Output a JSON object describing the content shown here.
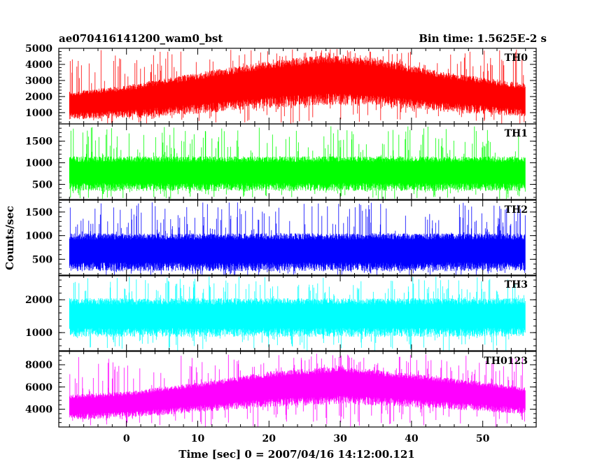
{
  "header": {
    "title": "ae070416141200_wam0_bst",
    "bin_time": "Bin time: 1.5625E-2 s"
  },
  "axes": {
    "xlabel": "Time [sec] 0 = 2007/04/16 14:12:00.121",
    "ylabel": "Counts/sec"
  },
  "chart_data": {
    "type": "line",
    "xlim": [
      -9.5,
      57.5
    ],
    "x_ticks": [
      0,
      10,
      20,
      30,
      40,
      50
    ],
    "x_data_range": [
      -8,
      56
    ],
    "bin_time_s": 0.015625,
    "panels": [
      {
        "name": "TH0",
        "color": "#ff0000",
        "ylim": [
          300,
          5000
        ],
        "y_ticks": [
          1000,
          2000,
          3000,
          4000,
          5000
        ],
        "trend": [
          {
            "x": -8,
            "low": 700,
            "high": 2300
          },
          {
            "x": 0,
            "low": 800,
            "high": 2700
          },
          {
            "x": 10,
            "low": 1100,
            "high": 3500
          },
          {
            "x": 20,
            "low": 1500,
            "high": 4200
          },
          {
            "x": 28,
            "low": 1700,
            "high": 4600
          },
          {
            "x": 35,
            "low": 1600,
            "high": 4400
          },
          {
            "x": 45,
            "low": 1200,
            "high": 3500
          },
          {
            "x": 56,
            "low": 900,
            "high": 2800
          }
        ],
        "spike_max": 4950
      },
      {
        "name": "TH1",
        "color": "#00ff00",
        "ylim": [
          150,
          1900
        ],
        "y_ticks": [
          500,
          1000,
          1500
        ],
        "trend": [
          {
            "x": -8,
            "low": 400,
            "high": 1150
          },
          {
            "x": 56,
            "low": 400,
            "high": 1150
          }
        ],
        "spike_max": 1850
      },
      {
        "name": "TH2",
        "color": "#0000ff",
        "ylim": [
          150,
          1750
        ],
        "y_ticks": [
          500,
          1000,
          1500
        ],
        "trend": [
          {
            "x": -8,
            "low": 300,
            "high": 1050
          },
          {
            "x": 56,
            "low": 300,
            "high": 1050
          }
        ],
        "spike_max": 1720
      },
      {
        "name": "TH3",
        "color": "#00ffff",
        "ylim": [
          450,
          2750
        ],
        "y_ticks": [
          1000,
          2000
        ],
        "trend": [
          {
            "x": -8,
            "low": 950,
            "high": 2050
          },
          {
            "x": 56,
            "low": 950,
            "high": 2050
          }
        ],
        "spike_max": 2700
      },
      {
        "name": "TH0123",
        "color": "#ff00ff",
        "ylim": [
          2400,
          9200
        ],
        "y_ticks": [
          4000,
          6000,
          8000
        ],
        "trend": [
          {
            "x": -8,
            "low": 3200,
            "high": 5300
          },
          {
            "x": 0,
            "low": 3400,
            "high": 5600
          },
          {
            "x": 10,
            "low": 3900,
            "high": 6400
          },
          {
            "x": 20,
            "low": 4400,
            "high": 7400
          },
          {
            "x": 30,
            "low": 4700,
            "high": 7900
          },
          {
            "x": 40,
            "low": 4400,
            "high": 7200
          },
          {
            "x": 50,
            "low": 4000,
            "high": 6500
          },
          {
            "x": 56,
            "low": 3700,
            "high": 6000
          }
        ],
        "spike_max": 9000
      }
    ]
  }
}
